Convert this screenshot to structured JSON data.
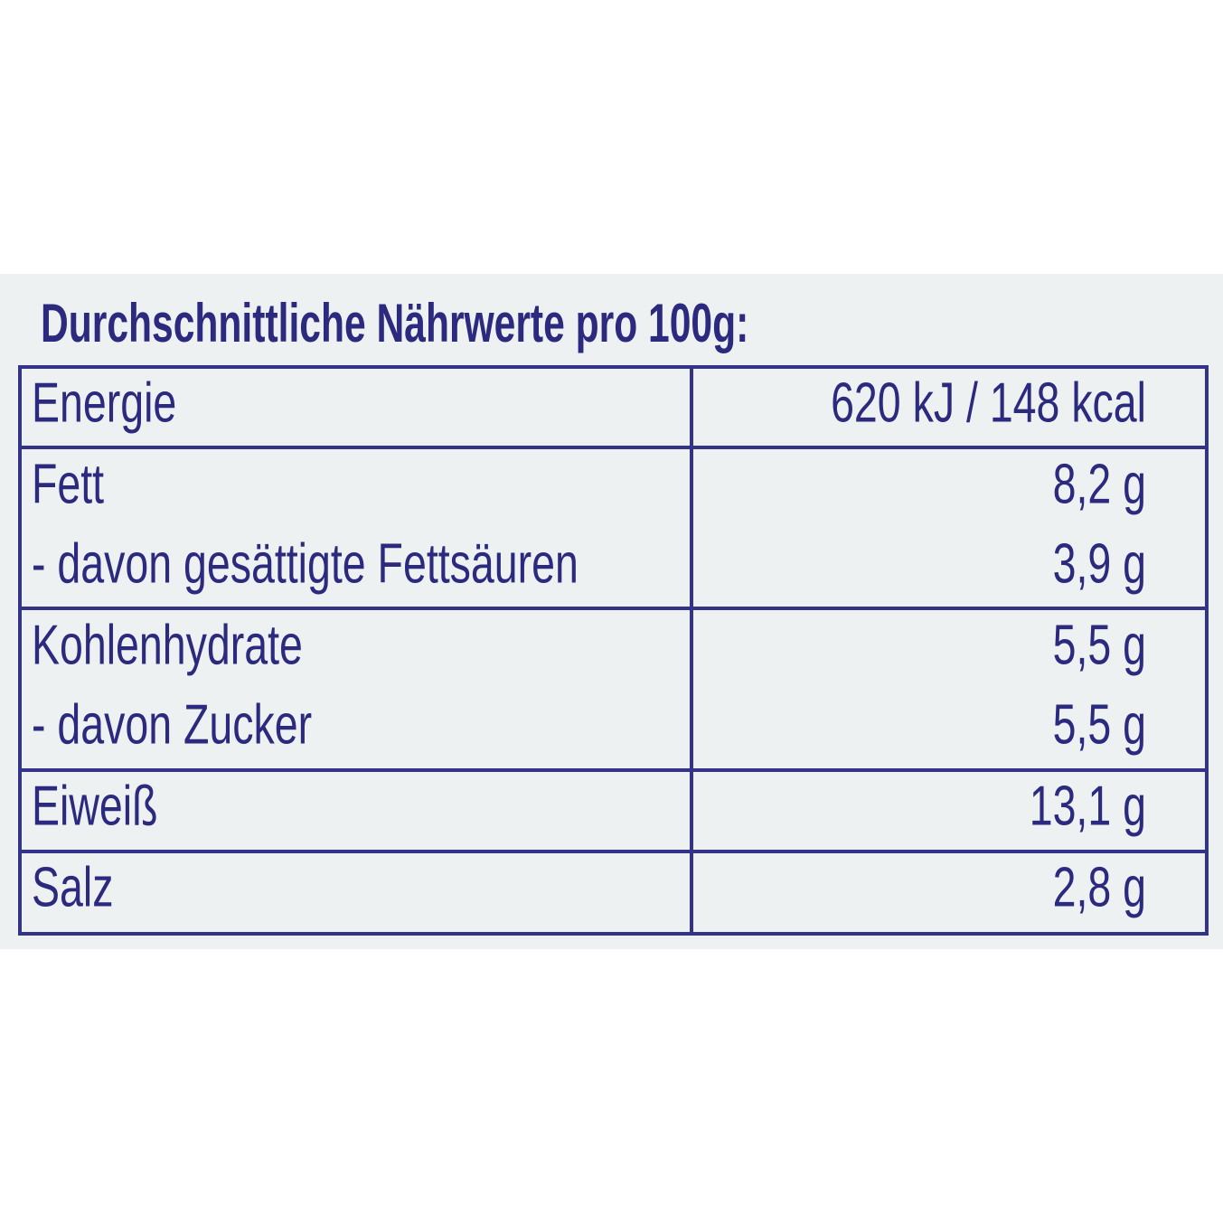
{
  "header": {
    "title": "Durchschnittliche Nährwerte pro 100g:"
  },
  "table": {
    "rows": [
      [
        "Energie",
        "620 kJ / 148 kcal"
      ],
      [
        "Fett",
        "8,2 g"
      ],
      [
        "- davon gesättigte Fettsäuren",
        "3,9 g"
      ],
      [
        "Kohlenhydrate",
        "5,5 g"
      ],
      [
        "- davon Zucker",
        "5,5 g"
      ],
      [
        "Eiweiß",
        "13,1 g"
      ],
      [
        "Salz",
        "2,8 g"
      ]
    ]
  }
}
